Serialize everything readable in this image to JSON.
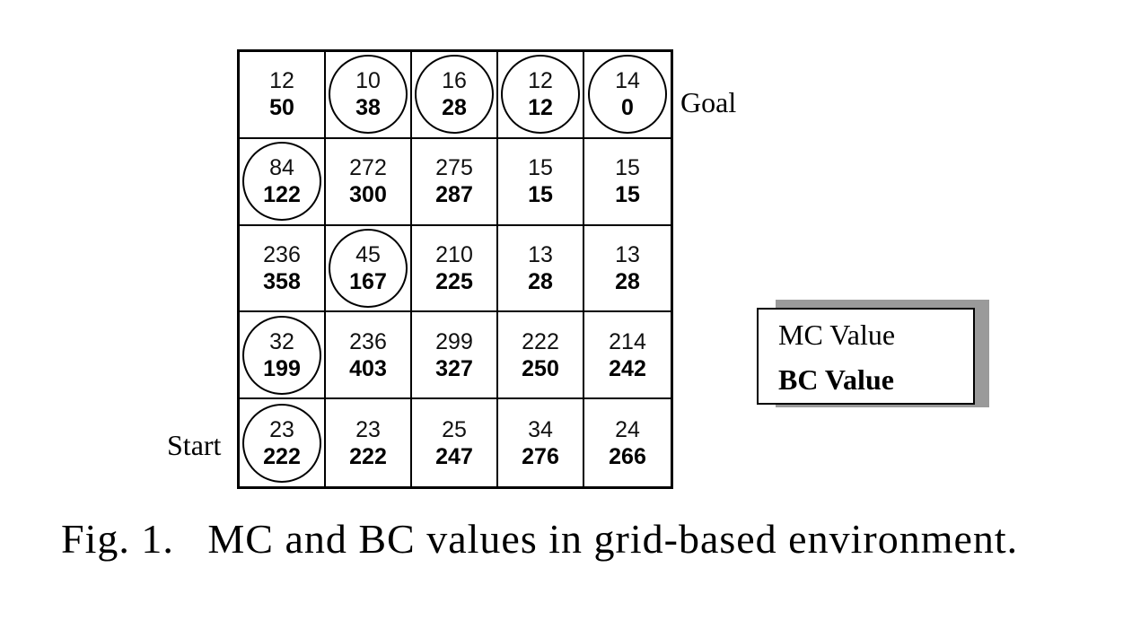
{
  "labels": {
    "goal": "Goal",
    "start": "Start"
  },
  "legend": {
    "mc_label": "MC Value",
    "bc_label": "BC Value"
  },
  "caption": "Fig. 1.   MC and BC values in grid-based environment.",
  "grid": [
    [
      {
        "mc": "12",
        "bc": "50",
        "circled": false
      },
      {
        "mc": "10",
        "bc": "38",
        "circled": true
      },
      {
        "mc": "16",
        "bc": "28",
        "circled": true
      },
      {
        "mc": "12",
        "bc": "12",
        "circled": true
      },
      {
        "mc": "14",
        "bc": "0",
        "circled": true
      }
    ],
    [
      {
        "mc": "84",
        "bc": "122",
        "circled": true
      },
      {
        "mc": "272",
        "bc": "300",
        "circled": false
      },
      {
        "mc": "275",
        "bc": "287",
        "circled": false
      },
      {
        "mc": "15",
        "bc": "15",
        "circled": false
      },
      {
        "mc": "15",
        "bc": "15",
        "circled": false
      }
    ],
    [
      {
        "mc": "236",
        "bc": "358",
        "circled": false
      },
      {
        "mc": "45",
        "bc": "167",
        "circled": true
      },
      {
        "mc": "210",
        "bc": "225",
        "circled": false
      },
      {
        "mc": "13",
        "bc": "28",
        "circled": false
      },
      {
        "mc": "13",
        "bc": "28",
        "circled": false
      }
    ],
    [
      {
        "mc": "32",
        "bc": "199",
        "circled": true
      },
      {
        "mc": "236",
        "bc": "403",
        "circled": false
      },
      {
        "mc": "299",
        "bc": "327",
        "circled": false
      },
      {
        "mc": "222",
        "bc": "250",
        "circled": false
      },
      {
        "mc": "214",
        "bc": "242",
        "circled": false
      }
    ],
    [
      {
        "mc": "23",
        "bc": "222",
        "circled": true
      },
      {
        "mc": "23",
        "bc": "222",
        "circled": false
      },
      {
        "mc": "25",
        "bc": "247",
        "circled": false
      },
      {
        "mc": "34",
        "bc": "276",
        "circled": false
      },
      {
        "mc": "24",
        "bc": "266",
        "circled": false
      }
    ]
  ]
}
